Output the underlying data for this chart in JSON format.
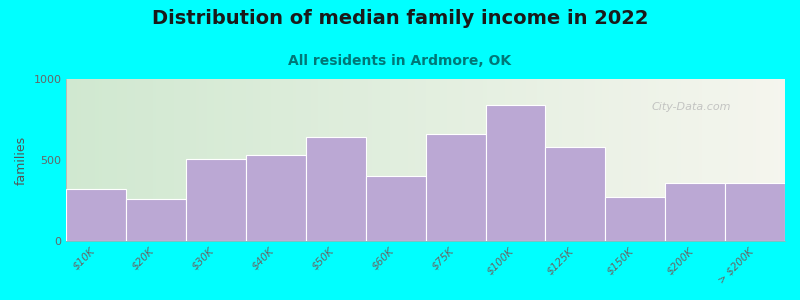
{
  "title": "Distribution of median family income in 2022",
  "subtitle": "All residents in Ardmore, OK",
  "ylabel": "families",
  "labels": [
    "$10K",
    "$20K",
    "$30K",
    "$40K",
    "$50K",
    "$60K",
    "$75K",
    "$100K",
    "$125K",
    "$150K",
    "$200K",
    "> $200K"
  ],
  "heights": [
    320,
    260,
    505,
    530,
    640,
    400,
    660,
    840,
    580,
    270,
    360,
    360
  ],
  "ylim": [
    0,
    1000
  ],
  "yticks": [
    0,
    500,
    1000
  ],
  "bar_color": "#bba8d4",
  "bar_edge_color": "#ffffff",
  "background_color": "#00ffff",
  "watermark": "City-Data.com",
  "title_fontsize": 14,
  "subtitle_fontsize": 10,
  "subtitle_color": "#007777",
  "ylabel_color": "#555555",
  "tick_label_color": "#666666",
  "bg_left_color": "#d0e8d0",
  "bg_right_color": "#f5f5ee"
}
